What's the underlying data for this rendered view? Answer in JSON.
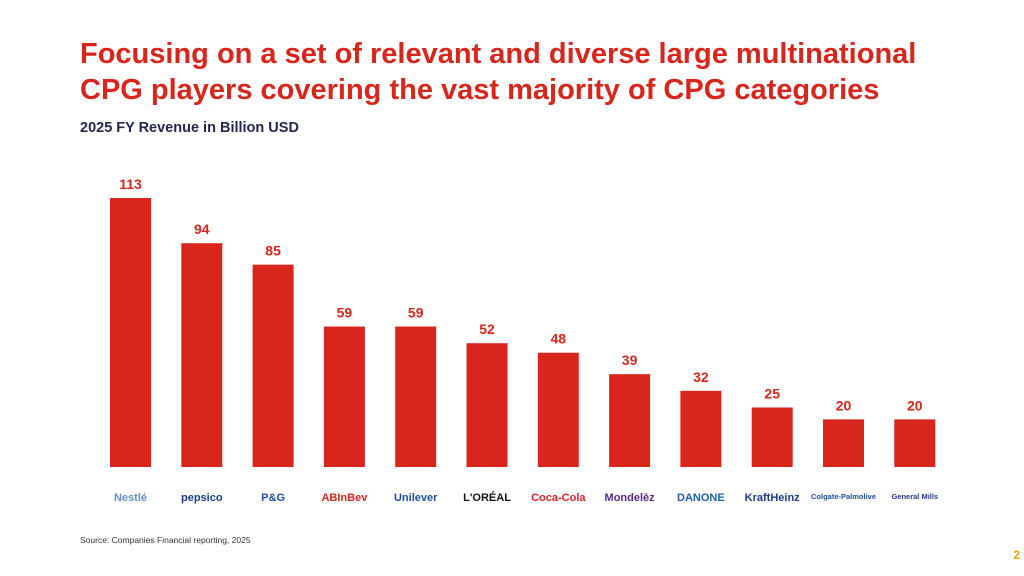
{
  "title": "Focusing on a set of relevant and diverse large multinational CPG players covering the vast majority of CPG categories",
  "subtitle": "2025 FY Revenue in Billion USD",
  "source": "Source: Companies Financial reporting, 2025",
  "page_number": "2",
  "colors": {
    "accent": "#d9261c",
    "subtitle": "#23264f",
    "page_number": "#e0a800"
  },
  "chart_data": {
    "type": "bar",
    "title": "2025 FY Revenue in Billion USD",
    "categories": [
      "Nestlé",
      "PepsiCo",
      "P&G",
      "AB InBev",
      "Unilever",
      "L'Oréal",
      "Coca-Cola",
      "Mondelēz",
      "Danone",
      "Kraft Heinz",
      "Colgate-Palmolive",
      "General Mills"
    ],
    "values": [
      113,
      94,
      85,
      59,
      59,
      52,
      48,
      39,
      32,
      25,
      20,
      20
    ],
    "data_labels": true,
    "grid": false,
    "ylim": [
      0,
      113
    ],
    "bar_color": "#d9261c"
  },
  "logos": [
    {
      "text": "Nestlé",
      "color": "#6a8fc4"
    },
    {
      "text": "pepsico",
      "color": "#1a3d8f"
    },
    {
      "text": "P&G",
      "color": "#1b50a8"
    },
    {
      "text": "ABInBev",
      "color": "#d9261c"
    },
    {
      "text": "Unilever",
      "color": "#1f4fa0"
    },
    {
      "text": "L'ORÉAL",
      "color": "#111111"
    },
    {
      "text": "Coca-Cola",
      "color": "#e01f26"
    },
    {
      "text": "Mondelēz",
      "color": "#5b2a86"
    },
    {
      "text": "DANONE",
      "color": "#1f5fae"
    },
    {
      "text": "KraftHeinz",
      "color": "#1f3b8a"
    },
    {
      "text": "Colgate-Palmolive",
      "color": "#1f4fa0"
    },
    {
      "text": "General Mills",
      "color": "#1f3b8a"
    }
  ]
}
